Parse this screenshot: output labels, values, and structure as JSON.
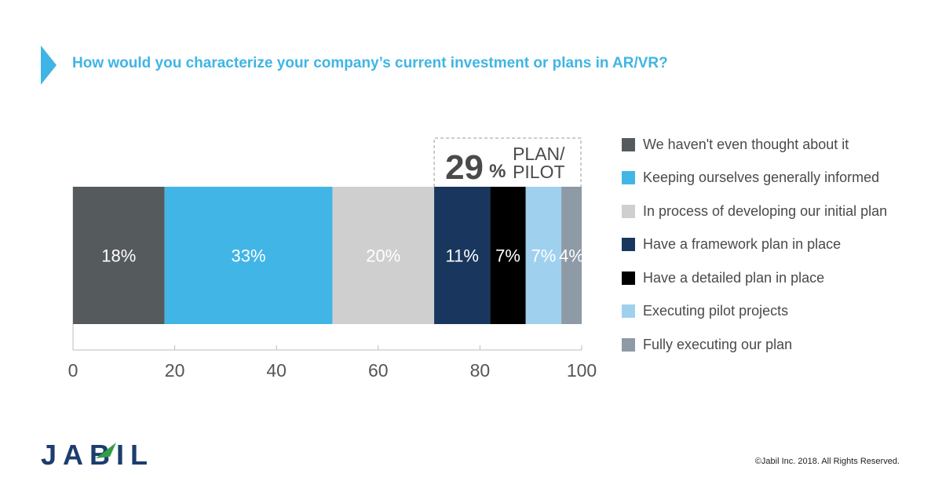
{
  "title": "How would you characterize your company’s current investment or plans in AR/VR?",
  "callout": {
    "value": "29",
    "unit": "%",
    "label_line1": "PLAN/",
    "label_line2": "PILOT"
  },
  "colors": {
    "accent": "#3fb5e5",
    "logo": "#1c3d6e"
  },
  "chart_data": {
    "type": "bar",
    "orientation": "horizontal-stacked",
    "xlim": [
      0,
      100
    ],
    "ticks": [
      0,
      20,
      40,
      60,
      80,
      100
    ],
    "grid": false,
    "legend_position": "right",
    "series": [
      {
        "name": "We haven't even thought about it",
        "value": 18,
        "label": "18%",
        "color": "#555a5d",
        "text_color": "#ffffff"
      },
      {
        "name": "Keeping ourselves generally informed",
        "value": 33,
        "label": "33%",
        "color": "#41b6e6",
        "text_color": "#ffffff"
      },
      {
        "name": "In process of developing our initial plan",
        "value": 20,
        "label": "20%",
        "color": "#cfcfd0",
        "text_color": "#ffffff"
      },
      {
        "name": "Have a framework plan in place",
        "value": 11,
        "label": "11%",
        "color": "#19375e",
        "text_color": "#ffffff"
      },
      {
        "name": "Have a detailed plan in place",
        "value": 7,
        "label": "7%",
        "color": "#000000",
        "text_color": "#ffffff"
      },
      {
        "name": "Executing pilot projects",
        "value": 7,
        "label": "7%",
        "color": "#9fd1ee",
        "text_color": "#ffffff"
      },
      {
        "name": "Fully executing our plan",
        "value": 4,
        "label": "4%",
        "color": "#8e9aa6",
        "text_color": "#ffffff"
      }
    ]
  },
  "logo_text": "JABIL",
  "copyright": "©Jabil Inc. 2018. All Rights Reserved."
}
